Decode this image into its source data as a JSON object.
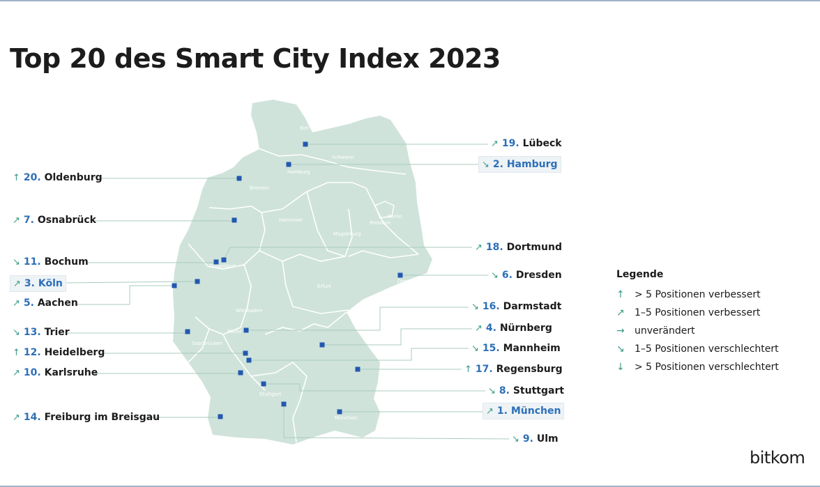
{
  "title": "Top 20 des Smart City Index 2023",
  "logo": "bitkom",
  "legend": {
    "title": "Legende",
    "items": [
      {
        "arrow": "↑",
        "text": "> 5 Positionen verbessert"
      },
      {
        "arrow": "↗",
        "text": "1–5 Positionen verbessert"
      },
      {
        "arrow": "→",
        "text": "unverändert"
      },
      {
        "arrow": "↘",
        "text": "1–5 Positionen verschlechtert"
      },
      {
        "arrow": "↓",
        "text": "> 5 Positionen verschlechtert"
      }
    ]
  },
  "colors": {
    "land": "#cfe3da",
    "border": "#ffffff",
    "marker": "#2358b0",
    "rank": "#2d6fb8",
    "arrow": "#3c9a86",
    "leader": "#a9cbbd"
  },
  "map_labels": [
    "Kiel",
    "Schwerin",
    "Hamburg",
    "Bremen",
    "Berlin",
    "Potsdam",
    "Hannover",
    "Magdeburg",
    "Düsseldorf",
    "Erfurt",
    "Dresden",
    "Wiesbaden",
    "Mainz",
    "Saarbrücken",
    "Stuttgart",
    "München"
  ],
  "cities": [
    {
      "rank": "1.",
      "name": "München",
      "trend": "↗",
      "highlight": true
    },
    {
      "rank": "2.",
      "name": "Hamburg",
      "trend": "↘",
      "highlight": true
    },
    {
      "rank": "3.",
      "name": "Köln",
      "trend": "↗",
      "highlight": true
    },
    {
      "rank": "4.",
      "name": "Nürnberg",
      "trend": "↗",
      "highlight": false
    },
    {
      "rank": "5.",
      "name": "Aachen",
      "trend": "↗",
      "highlight": false
    },
    {
      "rank": "6.",
      "name": "Dresden",
      "trend": "↘",
      "highlight": false
    },
    {
      "rank": "7.",
      "name": "Osnabrück",
      "trend": "↗",
      "highlight": false
    },
    {
      "rank": "8.",
      "name": "Stuttgart",
      "trend": "↘",
      "highlight": false
    },
    {
      "rank": "9.",
      "name": "Ulm",
      "trend": "↘",
      "highlight": false
    },
    {
      "rank": "10.",
      "name": "Karlsruhe",
      "trend": "↗",
      "highlight": false
    },
    {
      "rank": "11.",
      "name": "Bochum",
      "trend": "↘",
      "highlight": false
    },
    {
      "rank": "12.",
      "name": "Heidelberg",
      "trend": "↑",
      "highlight": false
    },
    {
      "rank": "13.",
      "name": "Trier",
      "trend": "↘",
      "highlight": false
    },
    {
      "rank": "14.",
      "name": "Freiburg im Breisgau",
      "trend": "↗",
      "highlight": false
    },
    {
      "rank": "15.",
      "name": "Mannheim",
      "trend": "↘",
      "highlight": false
    },
    {
      "rank": "16.",
      "name": "Darmstadt",
      "trend": "↘",
      "highlight": false
    },
    {
      "rank": "17.",
      "name": "Regensburg",
      "trend": "↑",
      "highlight": false
    },
    {
      "rank": "18.",
      "name": "Dortmund",
      "trend": "↗",
      "highlight": false
    },
    {
      "rank": "19.",
      "name": "Lübeck",
      "trend": "↗",
      "highlight": false
    },
    {
      "rank": "20.",
      "name": "Oldenburg",
      "trend": "↑",
      "highlight": false
    }
  ]
}
